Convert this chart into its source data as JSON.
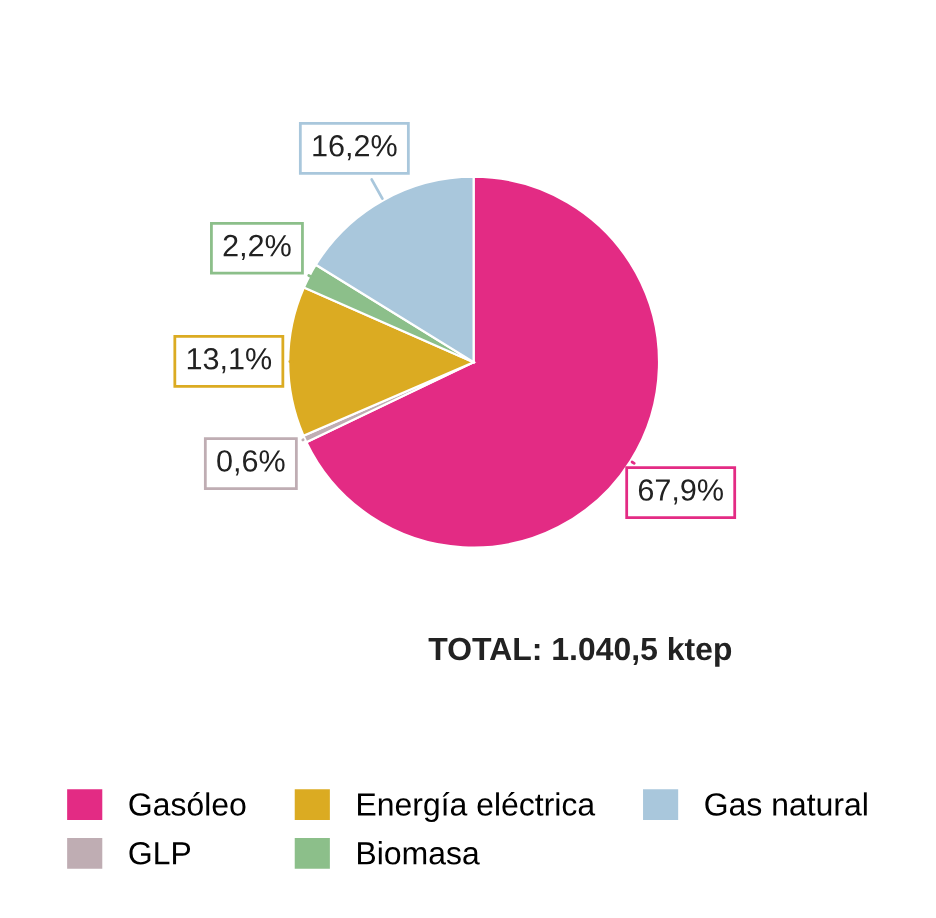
{
  "chart_data": {
    "type": "pie",
    "categories": [
      "Gasóleo",
      "GLP",
      "Energía eléctrica",
      "Biomasa",
      "Gas natural"
    ],
    "values": [
      67.9,
      0.6,
      13.1,
      2.2,
      16.2
    ],
    "colors": [
      "#e32b84",
      "#bfadb3",
      "#dbab22",
      "#8cbf8a",
      "#a9c7dc"
    ],
    "value_labels": [
      "67,9%",
      "0,6%",
      "13,1%",
      "2,2%",
      "16,2%"
    ],
    "annotations": [
      "TOTAL: 1.040,5 ktep"
    ],
    "legend": "bottom"
  }
}
